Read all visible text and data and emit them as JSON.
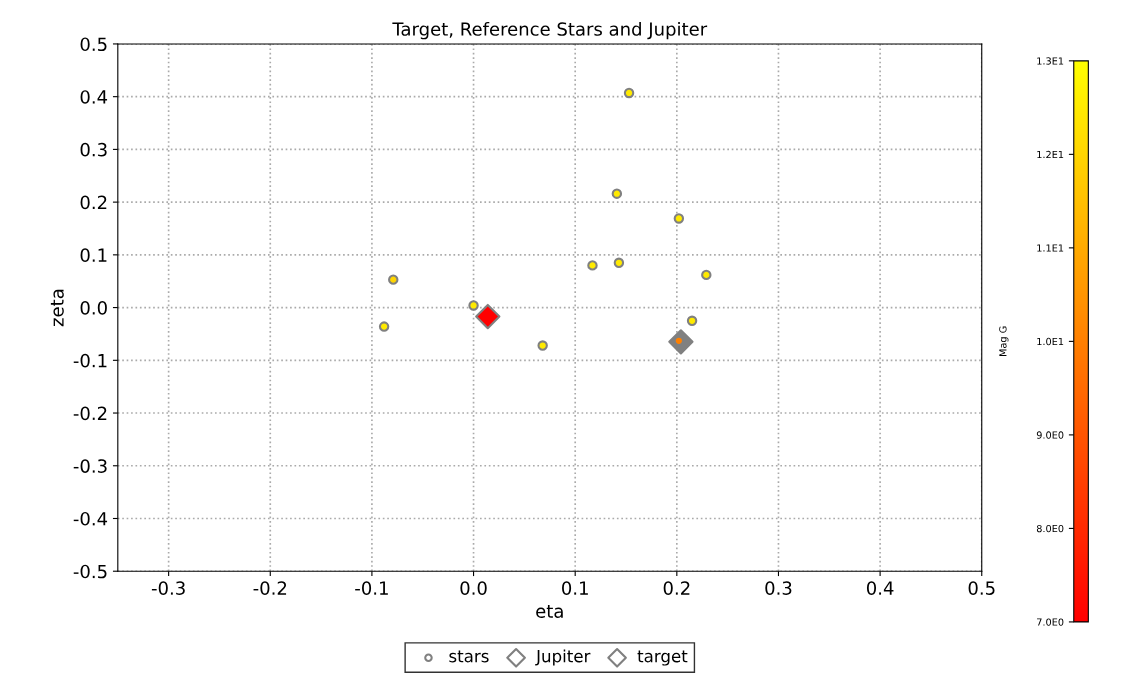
{
  "chart_data": {
    "type": "scatter",
    "title": "Target, Reference Stars and Jupiter",
    "xlabel": "eta",
    "ylabel": "zeta",
    "clabel": "Mag G",
    "series": [
      {
        "name": "stars",
        "marker": "circle",
        "color": "#808080",
        "x": [
          0.153,
          0.141,
          0.202,
          0.117,
          0.143,
          0.229,
          -0.079,
          0.0,
          -0.088,
          0.215,
          0.068,
          0.202
        ],
        "values": [
          0.407,
          0.216,
          0.169,
          0.08,
          0.085,
          0.062,
          0.053,
          0.004,
          -0.036,
          -0.025,
          -0.072,
          -0.063
        ],
        "cvalues": [
          12.5,
          12.5,
          12.5,
          12.5,
          12.5,
          12.5,
          12,
          12.5,
          12.5,
          12.5,
          12.5,
          10
        ]
      },
      {
        "name": "Jupiter",
        "marker": "diamond",
        "color": "#808080",
        "x": [
          0.204
        ],
        "values": [
          -0.065
        ]
      },
      {
        "name": "target",
        "marker": "diamond",
        "color": "#ff0000",
        "x": [
          0.014
        ],
        "values": [
          -0.017
        ]
      }
    ],
    "xlim": [
      -0.35,
      0.5
    ],
    "xticks": [
      {
        "value": -0.3,
        "label": "-0.3"
      },
      {
        "value": -0.2,
        "label": "-0.2"
      },
      {
        "value": -0.1,
        "label": "-0.1"
      },
      {
        "value": 0.0,
        "label": "0.0"
      },
      0.1,
      0.2,
      0.3,
      0.4,
      0.5
    ],
    "ylim": [
      -0.5,
      0.5
    ],
    "yticks": [
      -0.5,
      -0.4,
      -0.3,
      -0.2,
      -0.1,
      {
        "value": 0.0,
        "label": "0.0"
      },
      0.1,
      0.2,
      0.3,
      0.4,
      0.5
    ],
    "clim": [
      7,
      13
    ],
    "cticks": [
      {
        "value": 7,
        "label": "7.0E0"
      },
      {
        "value": 8,
        "label": "8.0E0"
      },
      {
        "value": 9,
        "label": "9.0E0"
      },
      {
        "value": 10,
        "label": "1.0E1"
      },
      {
        "value": 11,
        "label": "1.1E1"
      },
      {
        "value": 12,
        "label": "1.2E1"
      },
      {
        "value": 13,
        "label": "1.3E1"
      }
    ],
    "grid": true,
    "legend": "bottom"
  }
}
